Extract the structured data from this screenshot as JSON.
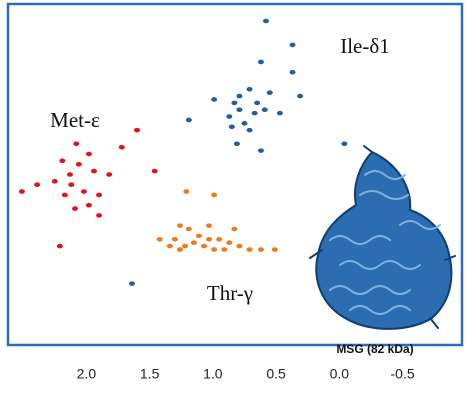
{
  "chart_data": {
    "type": "scatter",
    "series": [
      {
        "name": "Met-ε",
        "color": "#e3121b",
        "x": [
          2.08,
          1.98,
          2.19,
          2.06,
          1.94,
          1.82,
          2.13,
          2.25,
          2.12,
          2.39,
          2.02,
          1.9,
          2.51,
          2.17,
          1.98,
          2.09,
          1.9,
          2.21,
          1.6,
          1.46,
          1.72
        ],
        "values": [
          59,
          56,
          54,
          53,
          51,
          50,
          50,
          48,
          47,
          47,
          45,
          44,
          45,
          44,
          41,
          40,
          38,
          29,
          63,
          51,
          58
        ]
      },
      {
        "name": "Ile-δ1",
        "color": "#1f5fa3",
        "x": [
          0.58,
          0.37,
          0.62,
          0.37,
          0.71,
          0.55,
          0.79,
          0.65,
          0.83,
          0.99,
          0.79,
          0.67,
          0.87,
          0.75,
          0.59,
          0.47,
          0.85,
          0.71,
          0.81,
          0.62,
          1.19,
          0.31,
          -0.04,
          1.64
        ],
        "values": [
          95,
          88,
          83,
          80,
          75,
          74,
          73,
          71,
          71,
          72,
          69,
          68,
          67,
          65,
          69,
          68,
          64,
          63,
          59,
          57,
          66,
          73,
          59,
          18
        ]
      },
      {
        "name": "Thr-γ",
        "color": "#f07a1a",
        "x": [
          1.21,
          0.99,
          1.26,
          1.19,
          1.3,
          1.11,
          1.03,
          0.95,
          0.87,
          1.34,
          1.22,
          1.15,
          1.07,
          0.99,
          1.26,
          0.79,
          0.71,
          0.62,
          0.51,
          0.91,
          1.42,
          0.83,
          1.03
        ],
        "values": [
          45,
          44,
          35,
          34,
          31,
          32,
          31,
          31,
          30,
          29,
          29,
          30,
          29,
          28,
          28,
          29,
          28,
          28,
          28,
          28,
          31,
          34,
          35
        ]
      }
    ],
    "annotation": "MSG (82 kDa)",
    "xlim": [
      2.62,
      -0.97
    ],
    "ylim": [
      0,
      100
    ],
    "xticks": [
      {
        "value": 2,
        "label": "2.0"
      },
      1.5,
      {
        "value": 1,
        "label": "1.0"
      },
      0.5,
      {
        "value": 0,
        "label": "0.0"
      },
      -0.5
    ]
  }
}
